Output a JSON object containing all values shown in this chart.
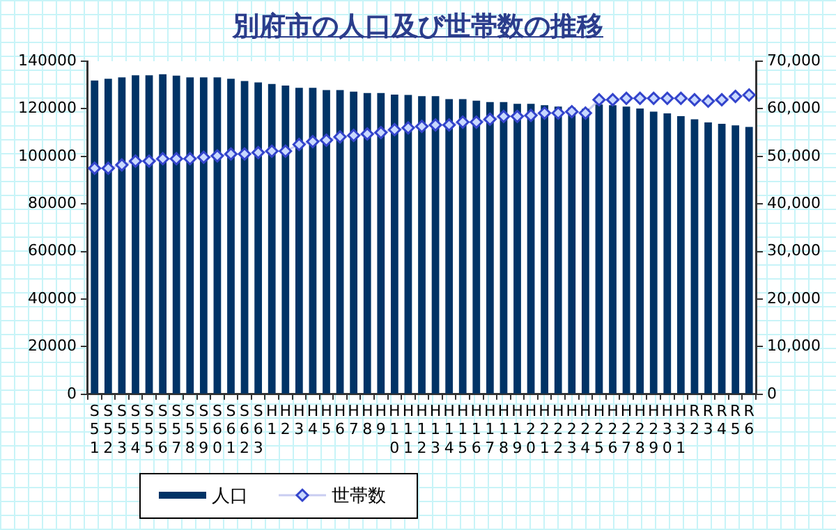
{
  "chart_data": {
    "type": "bar",
    "title": "別府市の人口及び世帯数の推移",
    "categories": [
      "S51",
      "S52",
      "S53",
      "S54",
      "S55",
      "S56",
      "S57",
      "S58",
      "S59",
      "S60",
      "S61",
      "S62",
      "S63",
      "H1",
      "H2",
      "H3",
      "H4",
      "H5",
      "H6",
      "H7",
      "H8",
      "H9",
      "H10",
      "H11",
      "H12",
      "H13",
      "H14",
      "H15",
      "H16",
      "H17",
      "H18",
      "H19",
      "H20",
      "H21",
      "H22",
      "H23",
      "H24",
      "H25",
      "H26",
      "H27",
      "H28",
      "H29",
      "H30",
      "H31",
      "R2",
      "R3",
      "R4",
      "R5",
      "R6"
    ],
    "series": [
      {
        "name": "人口",
        "color": "#003366",
        "values": [
          131900,
          132600,
          133200,
          134100,
          134100,
          134500,
          133900,
          133200,
          133200,
          133200,
          132600,
          131700,
          131100,
          130400,
          129800,
          128800,
          128800,
          127900,
          127900,
          127200,
          126600,
          126600,
          126000,
          125800,
          125300,
          125300,
          124100,
          124100,
          123400,
          122800,
          122800,
          122100,
          122100,
          121500,
          120900,
          120500,
          120000,
          121800,
          121500,
          120900,
          120100,
          118800,
          118100,
          116900,
          115600,
          114300,
          113700,
          113000,
          112400
        ]
      },
      {
        "name": "世帯数",
        "type": "line",
        "axis": "y2",
        "color": "#3344cc",
        "marker": "diamond",
        "values": [
          47500,
          47500,
          48200,
          49000,
          49000,
          49500,
          49500,
          49500,
          49800,
          50100,
          50500,
          50500,
          50800,
          51100,
          51100,
          52500,
          53100,
          53400,
          54100,
          54400,
          54700,
          55000,
          55600,
          56000,
          56300,
          56600,
          56600,
          57200,
          57200,
          57800,
          58400,
          58400,
          58600,
          59100,
          59100,
          59400,
          59100,
          61900,
          61900,
          62200,
          62200,
          62200,
          62200,
          62200,
          61900,
          61600,
          61900,
          62600,
          62900
        ]
      }
    ],
    "ylim": [
      0,
      140000
    ],
    "yticks": [
      0,
      20000,
      40000,
      60000,
      80000,
      100000,
      120000,
      140000
    ],
    "y2lim": [
      0,
      70000
    ],
    "y2ticks": [
      {
        "value": 0,
        "label": "0"
      },
      {
        "value": 10000,
        "label": "10,000"
      },
      {
        "value": 20000,
        "label": "20,000"
      },
      {
        "value": 30000,
        "label": "30,000"
      },
      {
        "value": 40000,
        "label": "40,000"
      },
      {
        "value": 50000,
        "label": "50,000"
      },
      {
        "value": 60000,
        "label": "60,000"
      },
      {
        "value": 70000,
        "label": "70,000"
      }
    ],
    "legend": "bottom left"
  }
}
